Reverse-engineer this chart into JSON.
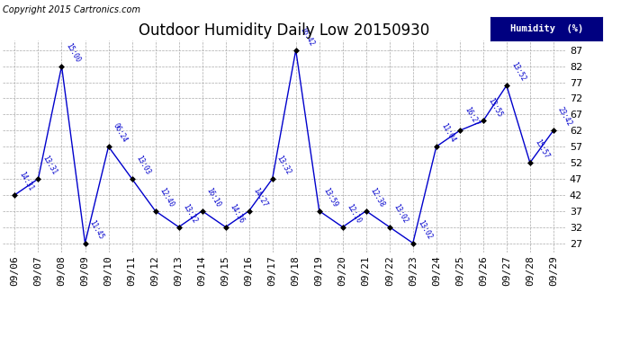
{
  "title": "Outdoor Humidity Daily Low 20150930",
  "copyright": "Copyright 2015 Cartronics.com",
  "legend_label": "Humidity  (%)",
  "background_color": "#ffffff",
  "plot_bg_color": "#ffffff",
  "line_color": "#0000cc",
  "grid_color": "#aaaaaa",
  "x_labels": [
    "09/06",
    "09/07",
    "09/08",
    "09/09",
    "09/10",
    "09/11",
    "09/12",
    "09/13",
    "09/14",
    "09/15",
    "09/16",
    "09/17",
    "09/18",
    "09/19",
    "09/20",
    "09/21",
    "09/22",
    "09/23",
    "09/24",
    "09/25",
    "09/26",
    "09/27",
    "09/28",
    "09/29"
  ],
  "y_values": [
    42,
    47,
    82,
    27,
    57,
    47,
    37,
    32,
    37,
    32,
    37,
    47,
    87,
    37,
    32,
    37,
    32,
    27,
    57,
    62,
    65,
    76,
    52,
    62
  ],
  "time_labels": [
    "14:31",
    "13:31",
    "15:00",
    "11:45",
    "06:24",
    "13:03",
    "12:40",
    "13:22",
    "16:10",
    "14:36",
    "14:27",
    "13:32",
    "16:42",
    "13:59",
    "12:10",
    "12:38",
    "13:02",
    "13:02",
    "11:04",
    "16:27",
    "13:55",
    "13:52",
    "15:57",
    "23:42"
  ],
  "ylim_min": 24,
  "ylim_max": 90,
  "yticks": [
    27,
    32,
    37,
    42,
    47,
    52,
    57,
    62,
    67,
    72,
    77,
    82,
    87
  ],
  "title_fontsize": 12,
  "tick_fontsize": 8,
  "label_fontsize": 7,
  "copyright_fontsize": 7
}
